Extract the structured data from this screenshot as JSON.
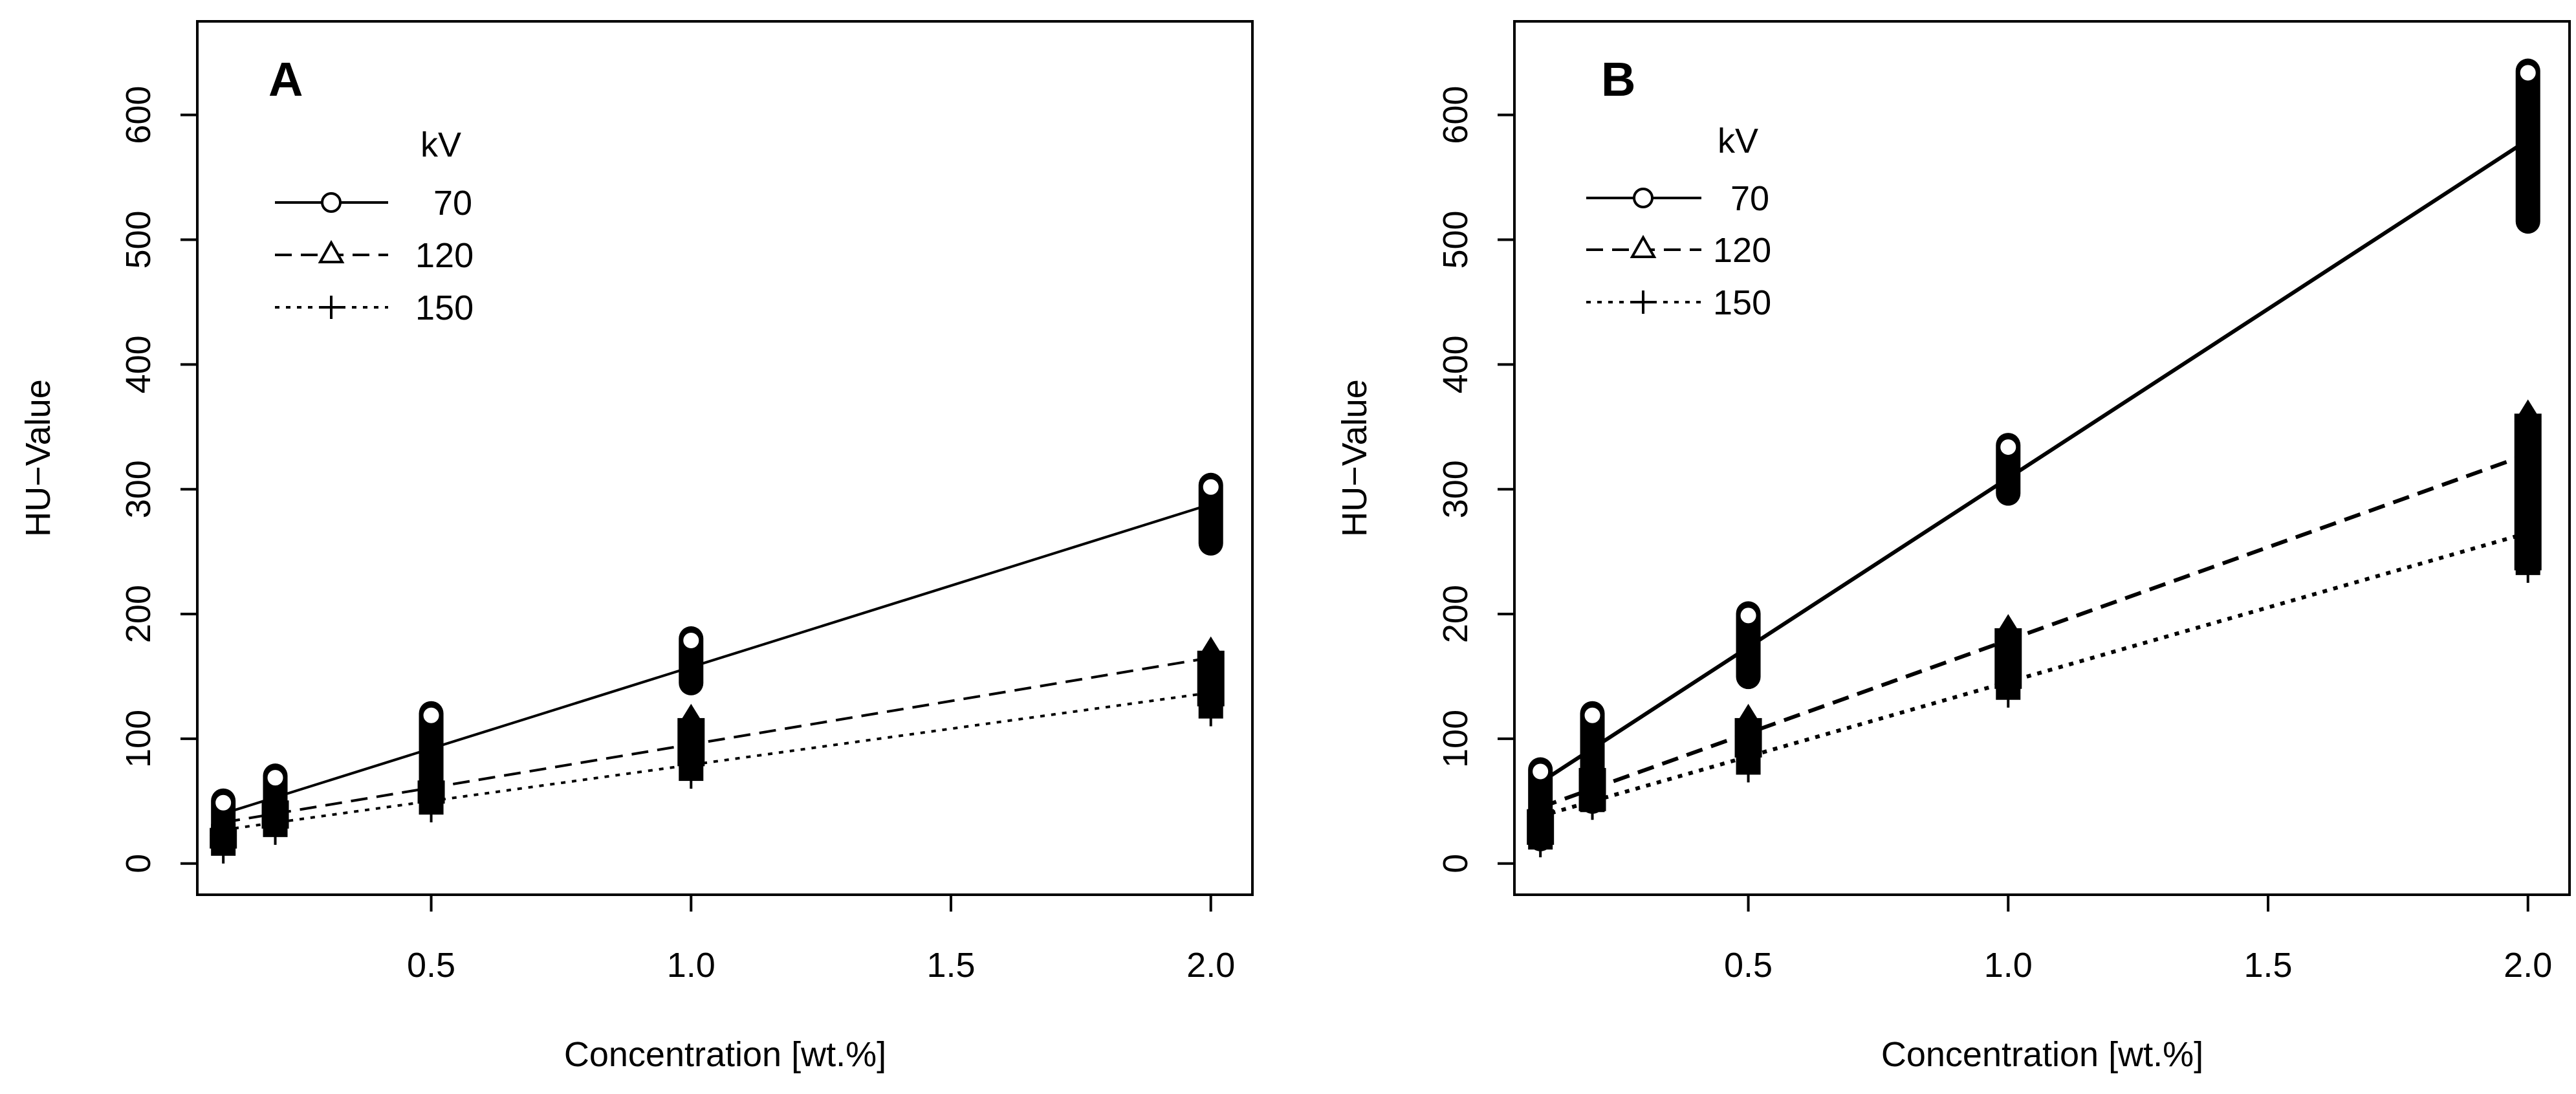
{
  "figure": {
    "panel_labels": [
      "A",
      "B"
    ],
    "legend_title": "kV",
    "legend_entries": [
      "70",
      "120",
      "150"
    ],
    "xlabel": "Concentration [wt.%]",
    "ylabel": "HU−Value"
  },
  "chart_data": [
    {
      "type": "scatter",
      "panel": "A",
      "xlabel": "Concentration [wt.%]",
      "ylabel": "HU−Value",
      "xlim": [
        0.05,
        2.08
      ],
      "ylim": [
        -25,
        675
      ],
      "x_ticks": [
        0.5,
        1.0,
        1.5,
        2.0
      ],
      "x_tick_labels": [
        "0.5",
        "1.0",
        "1.5",
        "2.0"
      ],
      "y_ticks": [
        0,
        100,
        200,
        300,
        400,
        500,
        600
      ],
      "y_tick_labels": [
        "0",
        "100",
        "200",
        "300",
        "400",
        "500",
        "600"
      ],
      "legend_title": "kV",
      "legend_position": "top-left",
      "series": [
        {
          "name": "70",
          "marker": "circle",
          "line": "solid",
          "fit": {
            "x": [
              0.1,
              2.0
            ],
            "y": [
              40,
              288
            ]
          },
          "x": [
            0.1,
            0.2,
            0.5,
            1.0,
            2.0
          ],
          "ymin": [
            12,
            32,
            60,
            140,
            252
          ],
          "ymax": [
            55,
            75,
            125,
            185,
            308
          ]
        },
        {
          "name": "120",
          "marker": "triangle",
          "line": "dashed",
          "fit": {
            "x": [
              0.1,
              2.0
            ],
            "y": [
              33,
              165
            ]
          },
          "x": [
            0.1,
            0.2,
            0.5,
            1.0,
            2.0
          ],
          "ymin": [
            12,
            28,
            48,
            78,
            126
          ],
          "ymax": [
            40,
            62,
            78,
            128,
            182
          ]
        },
        {
          "name": "150",
          "marker": "plus",
          "line": "dotted",
          "fit": {
            "x": [
              0.1,
              2.0
            ],
            "y": [
              27,
              137
            ]
          },
          "x": [
            0.1,
            0.2,
            0.5,
            1.0,
            2.0
          ],
          "ymin": [
            0,
            15,
            33,
            60,
            110
          ],
          "ymax": [
            38,
            55,
            72,
            110,
            162
          ]
        }
      ]
    },
    {
      "type": "scatter",
      "panel": "B",
      "xlabel": "Concentration [wt.%]",
      "ylabel": "HU−Value",
      "xlim": [
        0.05,
        2.08
      ],
      "ylim": [
        -25,
        675
      ],
      "x_ticks": [
        0.5,
        1.0,
        1.5,
        2.0
      ],
      "x_tick_labels": [
        "0.5",
        "1.0",
        "1.5",
        "2.0"
      ],
      "y_ticks": [
        0,
        100,
        200,
        300,
        400,
        500,
        600
      ],
      "y_tick_labels": [
        "0",
        "100",
        "200",
        "300",
        "400",
        "500",
        "600"
      ],
      "legend_title": "kV",
      "legend_position": "top-left",
      "series": [
        {
          "name": "70",
          "marker": "circle",
          "line": "solid",
          "fit": {
            "x": [
              0.1,
              2.0
            ],
            "y": [
              65,
              580
            ]
          },
          "x": [
            0.1,
            0.2,
            0.5,
            1.0,
            2.0
          ],
          "ymin": [
            15,
            45,
            145,
            292,
            510
          ],
          "ymax": [
            80,
            125,
            205,
            340,
            640
          ]
        },
        {
          "name": "120",
          "marker": "triangle",
          "line": "dashed",
          "fit": {
            "x": [
              0.1,
              2.0
            ],
            "y": [
              45,
              328
            ]
          },
          "x": [
            0.1,
            0.2,
            0.5,
            1.0,
            2.0
          ],
          "ymin": [
            15,
            42,
            85,
            140,
            235
          ],
          "ymax": [
            55,
            88,
            128,
            200,
            372
          ]
        },
        {
          "name": "150",
          "marker": "plus",
          "line": "dotted",
          "fit": {
            "x": [
              0.1,
              2.0
            ],
            "y": [
              38,
              265
            ]
          },
          "x": [
            0.1,
            0.2,
            0.5,
            1.0,
            2.0
          ],
          "ymin": [
            5,
            35,
            65,
            125,
            225
          ],
          "ymax": [
            48,
            78,
            110,
            175,
            300
          ]
        }
      ]
    }
  ]
}
